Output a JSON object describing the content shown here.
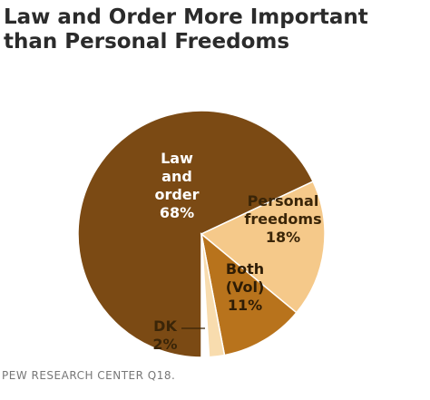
{
  "chart_data": {
    "type": "pie",
    "title": "Law and Order More Important than Personal Freedoms",
    "categories": [
      "Law and order",
      "Personal freedoms",
      "Both (Vol)",
      "DK"
    ],
    "values": [
      68,
      18,
      11,
      2
    ],
    "value_labels": [
      "68%",
      "18%",
      "11%",
      "2%"
    ],
    "colors": [
      "#7b4a14",
      "#f5c98a",
      "#b8731c",
      "#f8dcae"
    ],
    "source": "PEW RESEARCH CENTER Q18."
  }
}
